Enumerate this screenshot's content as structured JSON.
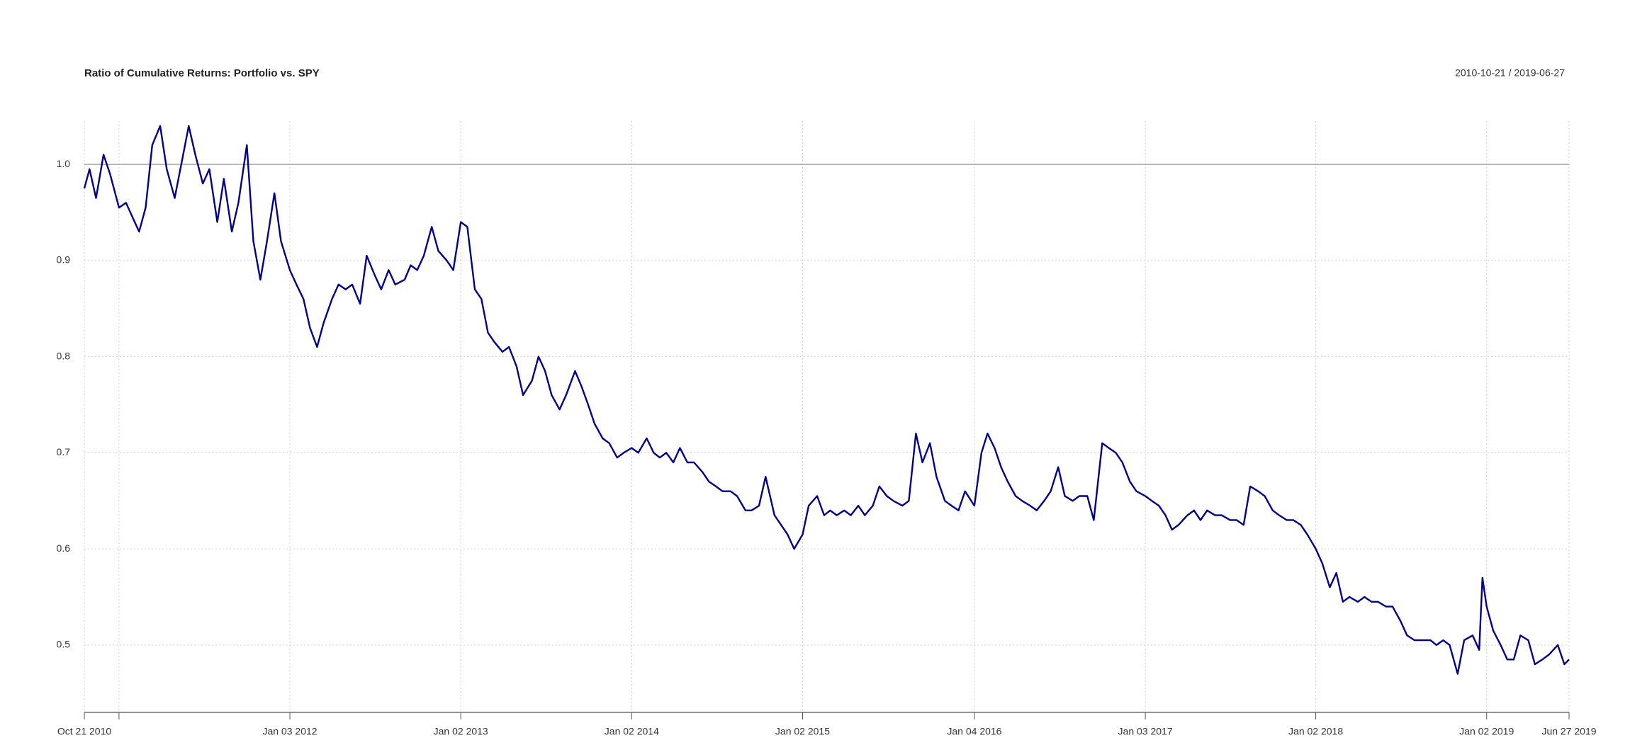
{
  "chart_data": {
    "type": "line",
    "title": "Ratio of Cumulative Returns: Portfolio vs. SPY",
    "subtitle": "2010-10-21 / 2019-06-27",
    "color": "#00008b",
    "grid": true,
    "reference_line": 1,
    "xlim": [
      "2010-10-21",
      "2019-06-27"
    ],
    "xticks": [
      {
        "value": "2010-10-21",
        "label": "Oct 21 2010"
      },
      {
        "value": "2011-01-03",
        "label": null
      },
      {
        "value": "2012-01-03",
        "label": "Jan 03 2012"
      },
      {
        "value": "2013-01-02",
        "label": "Jan 02 2013"
      },
      {
        "value": "2014-01-02",
        "label": "Jan 02 2014"
      },
      {
        "value": "2015-01-02",
        "label": "Jan 02 2015"
      },
      {
        "value": "2016-01-04",
        "label": "Jan 04 2016"
      },
      {
        "value": "2017-01-03",
        "label": "Jan 03 2017"
      },
      {
        "value": "2018-01-02",
        "label": "Jan 02 2018"
      },
      {
        "value": "2019-01-02",
        "label": "Jan 02 2019"
      },
      {
        "value": "2019-06-27",
        "label": "Jun 27 2019"
      }
    ],
    "ylim": [
      0.455,
      1.045
    ],
    "yticks": [
      0.5,
      0.6,
      0.7,
      0.8,
      0.9,
      {
        "value": 1,
        "label": "1.0"
      }
    ],
    "x": [
      "2010-10-21",
      "2010-11-01",
      "2010-11-15",
      "2010-12-01",
      "2010-12-15",
      "2011-01-03",
      "2011-01-18",
      "2011-02-01",
      "2011-02-15",
      "2011-03-01",
      "2011-03-15",
      "2011-04-01",
      "2011-04-15",
      "2011-05-02",
      "2011-05-16",
      "2011-06-01",
      "2011-06-15",
      "2011-07-01",
      "2011-07-15",
      "2011-08-01",
      "2011-08-15",
      "2011-09-01",
      "2011-09-15",
      "2011-10-03",
      "2011-10-17",
      "2011-11-01",
      "2011-11-15",
      "2011-12-01",
      "2011-12-15",
      "2012-01-03",
      "2012-01-17",
      "2012-02-01",
      "2012-02-15",
      "2012-03-01",
      "2012-03-15",
      "2012-04-02",
      "2012-04-16",
      "2012-05-01",
      "2012-05-15",
      "2012-06-01",
      "2012-06-15",
      "2012-07-02",
      "2012-07-16",
      "2012-08-01",
      "2012-08-15",
      "2012-09-04",
      "2012-09-17",
      "2012-10-01",
      "2012-10-15",
      "2012-11-01",
      "2012-11-15",
      "2012-12-03",
      "2012-12-17",
      "2013-01-02",
      "2013-01-16",
      "2013-02-01",
      "2013-02-15",
      "2013-03-01",
      "2013-03-15",
      "2013-04-01",
      "2013-04-15",
      "2013-05-01",
      "2013-05-15",
      "2013-06-03",
      "2013-06-17",
      "2013-07-01",
      "2013-07-15",
      "2013-08-01",
      "2013-08-15",
      "2013-09-03",
      "2013-09-16",
      "2013-10-01",
      "2013-10-15",
      "2013-11-01",
      "2013-11-15",
      "2013-12-02",
      "2013-12-16",
      "2014-01-02",
      "2014-01-16",
      "2014-02-03",
      "2014-02-18",
      "2014-03-03",
      "2014-03-17",
      "2014-04-01",
      "2014-04-15",
      "2014-05-01",
      "2014-05-15",
      "2014-06-02",
      "2014-06-16",
      "2014-07-01",
      "2014-07-15",
      "2014-08-01",
      "2014-08-15",
      "2014-09-02",
      "2014-09-15",
      "2014-10-01",
      "2014-10-15",
      "2014-11-03",
      "2014-11-17",
      "2014-12-01",
      "2014-12-15",
      "2015-01-02",
      "2015-01-15",
      "2015-02-02",
      "2015-02-17",
      "2015-03-02",
      "2015-03-16",
      "2015-04-01",
      "2015-04-15",
      "2015-05-01",
      "2015-05-15",
      "2015-06-01",
      "2015-06-15",
      "2015-07-01",
      "2015-07-15",
      "2015-08-03",
      "2015-08-17",
      "2015-09-01",
      "2015-09-15",
      "2015-10-01",
      "2015-10-15",
      "2015-11-02",
      "2015-11-16",
      "2015-12-01",
      "2015-12-15",
      "2016-01-04",
      "2016-01-19",
      "2016-02-01",
      "2016-02-16",
      "2016-03-01",
      "2016-03-15",
      "2016-04-01",
      "2016-04-15",
      "2016-05-02",
      "2016-05-16",
      "2016-06-01",
      "2016-06-15",
      "2016-07-01",
      "2016-07-15",
      "2016-08-01",
      "2016-08-15",
      "2016-09-01",
      "2016-09-15",
      "2016-10-03",
      "2016-10-17",
      "2016-11-01",
      "2016-11-15",
      "2016-12-01",
      "2016-12-15",
      "2017-01-03",
      "2017-01-17",
      "2017-02-01",
      "2017-02-15",
      "2017-03-01",
      "2017-03-15",
      "2017-04-03",
      "2017-04-17",
      "2017-05-01",
      "2017-05-15",
      "2017-06-01",
      "2017-06-15",
      "2017-07-03",
      "2017-07-17",
      "2017-08-01",
      "2017-08-15",
      "2017-09-01",
      "2017-09-15",
      "2017-10-02",
      "2017-10-16",
      "2017-11-01",
      "2017-11-15",
      "2017-12-01",
      "2017-12-15",
      "2018-01-02",
      "2018-01-16",
      "2018-02-01",
      "2018-02-15",
      "2018-03-01",
      "2018-03-15",
      "2018-04-02",
      "2018-04-16",
      "2018-05-01",
      "2018-05-15",
      "2018-06-01",
      "2018-06-15",
      "2018-07-02",
      "2018-07-16",
      "2018-08-01",
      "2018-08-15",
      "2018-09-04",
      "2018-09-17",
      "2018-10-01",
      "2018-10-15",
      "2018-11-01",
      "2018-11-15",
      "2018-12-03",
      "2018-12-17",
      "2018-12-24",
      "2019-01-02",
      "2019-01-16",
      "2019-02-01",
      "2019-02-15",
      "2019-03-01",
      "2019-03-15",
      "2019-04-01",
      "2019-04-15",
      "2019-05-01",
      "2019-05-15",
      "2019-06-03",
      "2019-06-17",
      "2019-06-27"
    ],
    "values": [
      0.975,
      0.995,
      0.965,
      1.01,
      0.99,
      0.955,
      0.96,
      0.945,
      0.93,
      0.955,
      1.02,
      1.04,
      0.995,
      0.965,
      1.0,
      1.04,
      1.01,
      0.98,
      0.995,
      0.94,
      0.985,
      0.93,
      0.96,
      1.02,
      0.92,
      0.88,
      0.92,
      0.97,
      0.92,
      0.89,
      0.875,
      0.86,
      0.83,
      0.81,
      0.835,
      0.86,
      0.875,
      0.87,
      0.875,
      0.855,
      0.905,
      0.885,
      0.87,
      0.89,
      0.875,
      0.88,
      0.895,
      0.89,
      0.905,
      0.935,
      0.91,
      0.9,
      0.89,
      0.94,
      0.935,
      0.87,
      0.86,
      0.825,
      0.815,
      0.805,
      0.81,
      0.79,
      0.76,
      0.775,
      0.8,
      0.785,
      0.76,
      0.745,
      0.76,
      0.785,
      0.77,
      0.75,
      0.73,
      0.715,
      0.71,
      0.695,
      0.7,
      0.705,
      0.7,
      0.715,
      0.7,
      0.695,
      0.7,
      0.69,
      0.705,
      0.69,
      0.69,
      0.68,
      0.67,
      0.665,
      0.66,
      0.66,
      0.655,
      0.64,
      0.64,
      0.645,
      0.675,
      0.635,
      0.625,
      0.615,
      0.6,
      0.615,
      0.645,
      0.655,
      0.635,
      0.64,
      0.635,
      0.64,
      0.635,
      0.645,
      0.635,
      0.645,
      0.665,
      0.655,
      0.65,
      0.645,
      0.65,
      0.72,
      0.69,
      0.71,
      0.675,
      0.65,
      0.645,
      0.64,
      0.66,
      0.645,
      0.7,
      0.72,
      0.705,
      0.685,
      0.67,
      0.655,
      0.65,
      0.645,
      0.64,
      0.65,
      0.66,
      0.685,
      0.655,
      0.65,
      0.655,
      0.655,
      0.63,
      0.71,
      0.705,
      0.7,
      0.69,
      0.67,
      0.66,
      0.655,
      0.65,
      0.645,
      0.635,
      0.62,
      0.625,
      0.635,
      0.64,
      0.63,
      0.64,
      0.635,
      0.635,
      0.63,
      0.63,
      0.625,
      0.665,
      0.66,
      0.655,
      0.64,
      0.635,
      0.63,
      0.63,
      0.625,
      0.615,
      0.6,
      0.585,
      0.56,
      0.575,
      0.545,
      0.55,
      0.545,
      0.55,
      0.545,
      0.545,
      0.54,
      0.54,
      0.525,
      0.51,
      0.505,
      0.505,
      0.505,
      0.5,
      0.505,
      0.5,
      0.47,
      0.505,
      0.51,
      0.495,
      0.57,
      0.54,
      0.515,
      0.5,
      0.485,
      0.485,
      0.51,
      0.505,
      0.48,
      0.485,
      0.49,
      0.5,
      0.48,
      0.485
    ]
  }
}
